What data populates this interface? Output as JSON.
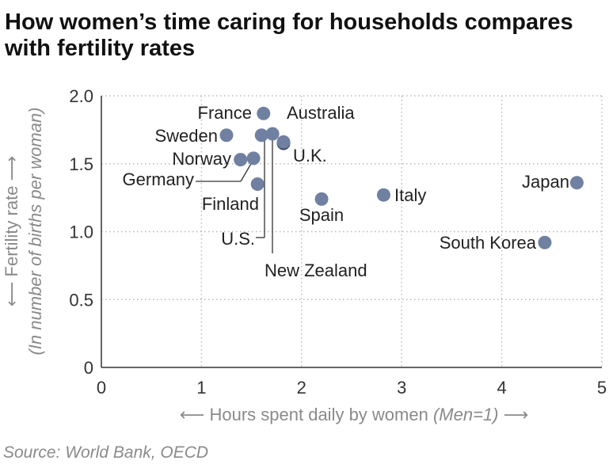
{
  "title": "How women’s time caring for households compares with fertility rates",
  "source": "Source: World Bank, OECD",
  "chart_data": {
    "type": "scatter",
    "xlabel": "Hours spent daily by women",
    "xlabel_note": "(Men=1)",
    "ylabel": "Fertility rate",
    "ylabel_note": "(In number of births per woman)",
    "xlim": [
      0,
      5
    ],
    "ylim": [
      0,
      2.0
    ],
    "xticks": [
      "0",
      "1",
      "2",
      "3",
      "4",
      "5"
    ],
    "yticks": [
      "0",
      "0.5",
      "1.0",
      "1.5",
      "2.0"
    ],
    "grid": true,
    "points": [
      {
        "label": "France",
        "x": 1.62,
        "y": 1.87
      },
      {
        "label": "Sweden",
        "x": 1.25,
        "y": 1.71
      },
      {
        "label": "Australia",
        "x": 1.71,
        "y": 1.72
      },
      {
        "label": "U.S.",
        "x": 1.6,
        "y": 1.71
      },
      {
        "label": "U.K.",
        "x": 1.82,
        "y": 1.65
      },
      {
        "label": "Norway",
        "x": 1.39,
        "y": 1.53
      },
      {
        "label": "Germany",
        "x": 1.52,
        "y": 1.54
      },
      {
        "label": "Finland",
        "x": 1.56,
        "y": 1.35
      },
      {
        "label": "New Zealand",
        "x": 1.82,
        "y": 1.66
      },
      {
        "label": "Spain",
        "x": 2.2,
        "y": 1.24
      },
      {
        "label": "Italy",
        "x": 2.82,
        "y": 1.27
      },
      {
        "label": "Japan",
        "x": 4.75,
        "y": 1.36
      },
      {
        "label": "South Korea",
        "x": 4.43,
        "y": 0.92
      }
    ],
    "colors": {
      "point": "#7080a0",
      "highlight": "#2f4266",
      "grid": "#b8b8b8"
    }
  }
}
